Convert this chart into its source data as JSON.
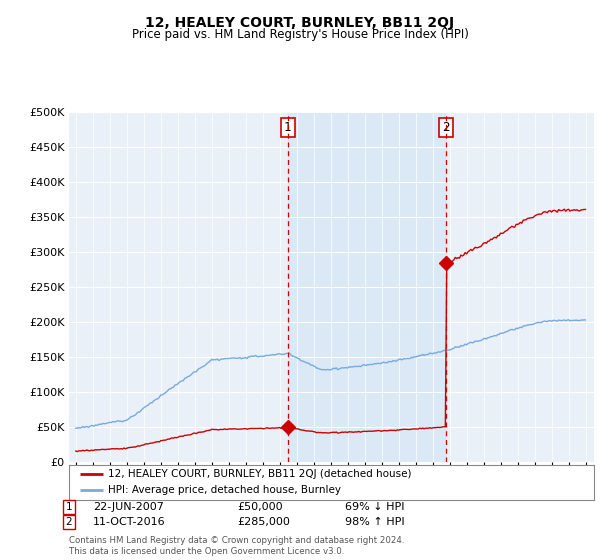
{
  "title": "12, HEALEY COURT, BURNLEY, BB11 2QJ",
  "subtitle": "Price paid vs. HM Land Registry's House Price Index (HPI)",
  "legend_line1": "12, HEALEY COURT, BURNLEY, BB11 2QJ (detached house)",
  "legend_line2": "HPI: Average price, detached house, Burnley",
  "footnote": "Contains HM Land Registry data © Crown copyright and database right 2024.\nThis data is licensed under the Open Government Licence v3.0.",
  "sale1_date": "22-JUN-2007",
  "sale1_price": "£50,000",
  "sale1_hpi": "69% ↓ HPI",
  "sale1_year": 2007.47,
  "sale1_value": 50000,
  "sale2_date": "11-OCT-2016",
  "sale2_price": "£285,000",
  "sale2_hpi": "98% ↑ HPI",
  "sale2_year": 2016.78,
  "sale2_value": 285000,
  "ylim_max": 500000,
  "ylim_min": 0,
  "yticks": [
    0,
    50000,
    100000,
    150000,
    200000,
    250000,
    300000,
    350000,
    400000,
    450000,
    500000
  ],
  "red_color": "#cc0000",
  "blue_color": "#7aaadd",
  "dashed_color": "#cc0000",
  "fill_color": "#d8e8f5",
  "plot_bg": "#eaf0f8",
  "grid_color": "#ffffff"
}
